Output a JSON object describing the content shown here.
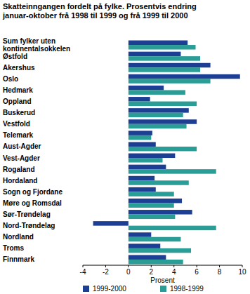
{
  "chart_data": {
    "type": "bar",
    "orientation": "horizontal",
    "title": "Skatteinngangen fordelt på fylke. Prosentvis endring januar-oktober frå 1998 til 1999 og frå 1999 til 2000",
    "x_label": "Prosent",
    "categories": [
      "Sum fylker uten kontinentalsokkelen",
      "Østfold",
      "Akershus",
      "Oslo",
      "Hedmark",
      "Oppland",
      "Buskerud",
      "Vestfold",
      "Telemark",
      "Aust-Agder",
      "Vest-Agder",
      "Rogaland",
      "Hordaland",
      "Sogn og Fjordane",
      "Møre og Romsdal",
      "Sør-Trøndelag",
      "Nord-Trøndelag",
      "Nordland",
      "Troms",
      "Finnmark"
    ],
    "series": [
      {
        "name": "1999-2000",
        "color": "#1c3f94",
        "values": [
          5.2,
          4.6,
          7.2,
          9.8,
          3.1,
          1.9,
          5.3,
          6.0,
          2.1,
          2.4,
          4.1,
          3.3,
          2.3,
          2.4,
          4.7,
          5.6,
          -3.1,
          2.0,
          2.8,
          3.3
        ]
      },
      {
        "name": "1998-1999",
        "color": "#2a9d96",
        "values": [
          5.9,
          6.3,
          6.3,
          7.2,
          5.0,
          6.0,
          4.8,
          5.1,
          2.0,
          6.0,
          3.0,
          7.7,
          5.3,
          4.0,
          4.0,
          4.1,
          7.7,
          4.6,
          5.5,
          4.8
        ]
      }
    ],
    "xlim": [
      -4,
      10
    ],
    "xticks": [
      -4,
      -2,
      0,
      2,
      4,
      6,
      8,
      10
    ],
    "grid": false,
    "legend": "bottom"
  }
}
